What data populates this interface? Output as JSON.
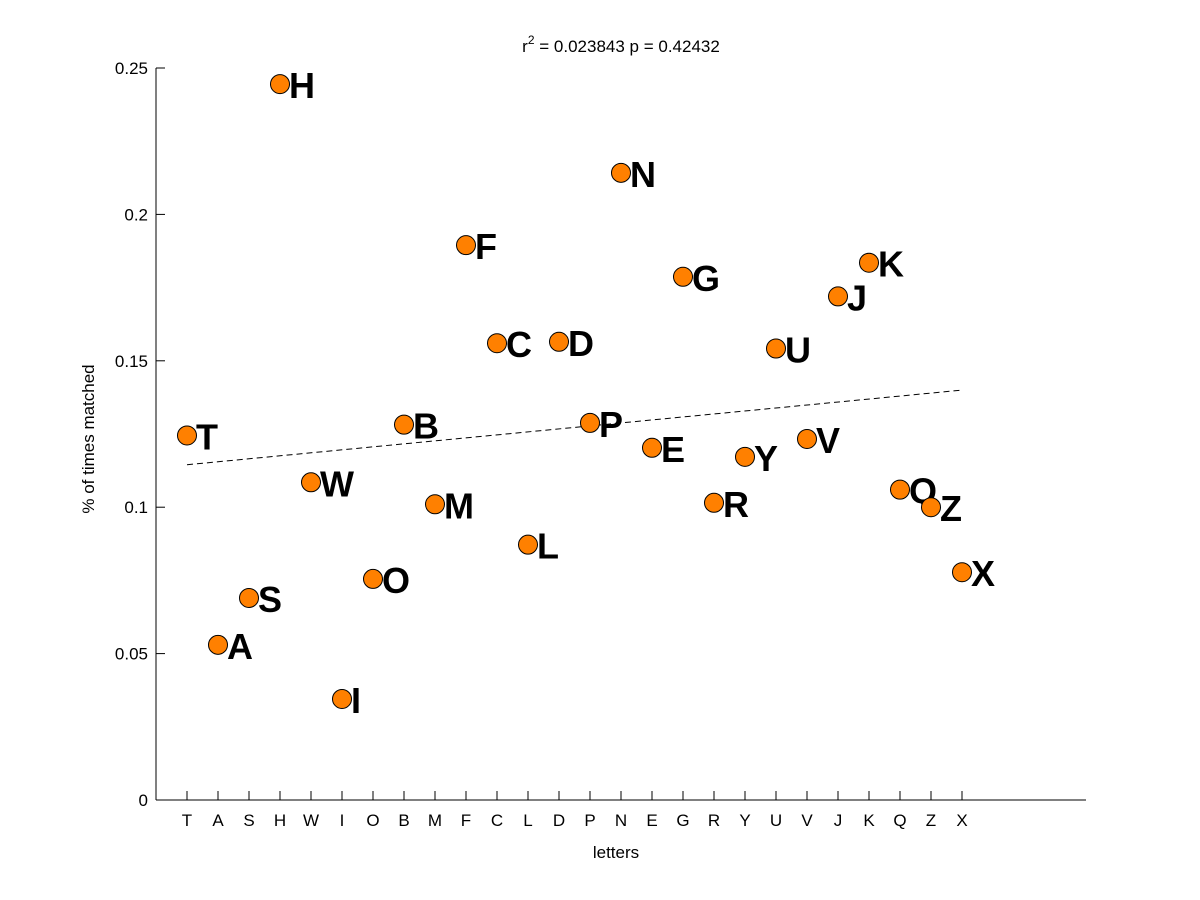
{
  "chart_data": {
    "type": "scatter",
    "title_main": "r",
    "title_sup": "2",
    "title_rest": " = 0.023843 p = 0.42432",
    "xlabel": "letters",
    "ylabel": "% of times matched",
    "ylim": [
      0,
      0.25
    ],
    "yticks": [
      0,
      0.05,
      0.1,
      0.15,
      0.2,
      0.25
    ],
    "ytick_labels": [
      "0",
      "0.05",
      "0.1",
      "0.15",
      "0.2",
      "0.25"
    ],
    "xlim": [
      0,
      30
    ],
    "categories": [
      "T",
      "A",
      "S",
      "H",
      "W",
      "I",
      "O",
      "B",
      "M",
      "F",
      "C",
      "L",
      "D",
      "P",
      "N",
      "E",
      "G",
      "R",
      "Y",
      "U",
      "V",
      "J",
      "K",
      "Q",
      "Z",
      "X"
    ],
    "values": [
      0.1245,
      0.053,
      0.069,
      0.2445,
      0.1085,
      0.0345,
      0.0755,
      0.1282,
      0.101,
      0.1895,
      0.156,
      0.0872,
      0.1565,
      0.1288,
      0.2142,
      0.1203,
      0.1787,
      0.1015,
      0.1172,
      0.1542,
      0.1233,
      0.172,
      0.1835,
      0.106,
      0.1,
      0.0778
    ],
    "fit_line": {
      "x": [
        1,
        26
      ],
      "y": [
        0.1145,
        0.14
      ]
    },
    "grid": false,
    "marker_color": "#ff8000",
    "marker_edge": "#000000",
    "fit_color": "#000000"
  }
}
